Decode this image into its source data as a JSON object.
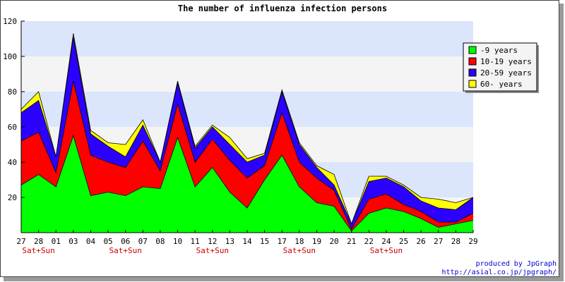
{
  "chart_data": {
    "type": "area",
    "stacked": true,
    "title": "The number of influenza infection persons",
    "x": [
      "27",
      "28",
      "01",
      "03",
      "04",
      "05",
      "06",
      "07",
      "08",
      "10",
      "11",
      "12",
      "13",
      "14",
      "15",
      "17",
      "18",
      "19",
      "20",
      "21",
      "22",
      "24",
      "25",
      "26",
      "27",
      "28",
      "29"
    ],
    "weekend_marks": [
      {
        "index": 1,
        "label": "Sat+Sun"
      },
      {
        "index": 6,
        "label": "Sat+Sun"
      },
      {
        "index": 11,
        "label": "Sat+Sun"
      },
      {
        "index": 16,
        "label": "Sat+Sun"
      },
      {
        "index": 21,
        "label": "Sat+Sun"
      }
    ],
    "ylim": [
      0,
      120
    ],
    "yticks": [
      20,
      40,
      60,
      80,
      100,
      120
    ],
    "grid": true,
    "band_colors": [
      "#f4f4f4",
      "#dbe5fc"
    ],
    "legend_position": "top-right",
    "series": [
      {
        "name": "-9 years",
        "color": "#00ff00",
        "values": [
          27,
          33,
          26,
          55,
          21,
          23,
          21,
          26,
          25,
          54,
          26,
          37,
          23,
          14,
          30,
          44,
          26,
          17,
          15,
          1,
          11,
          14,
          12,
          8,
          3,
          5,
          7
        ]
      },
      {
        "name": "10-19 years",
        "color": "#ff0000",
        "values": [
          25,
          24,
          8,
          31,
          23,
          17,
          16,
          26,
          10,
          19,
          14,
          16,
          18,
          17,
          8,
          24,
          14,
          14,
          9,
          1,
          8,
          8,
          4,
          4,
          3,
          1,
          4
        ]
      },
      {
        "name": "20-59 years",
        "color": "#2b00ff",
        "values": [
          16,
          18,
          9,
          25,
          12,
          9,
          6,
          9,
          5,
          12,
          8,
          7,
          9,
          9,
          6,
          12,
          10,
          6,
          3,
          3,
          10,
          9,
          10,
          6,
          8,
          7,
          9
        ]
      },
      {
        "name": "60- years",
        "color": "#ffff00",
        "values": [
          2,
          5,
          0,
          2,
          2,
          2,
          7,
          3,
          0,
          1,
          1,
          1,
          4,
          2,
          1,
          1,
          1,
          1,
          6,
          0,
          3,
          1,
          1,
          2,
          5,
          4,
          0
        ]
      }
    ]
  },
  "credits": {
    "line1": "produced by JpGraph",
    "line2": "http://asial.co.jp/jpgraph/"
  }
}
